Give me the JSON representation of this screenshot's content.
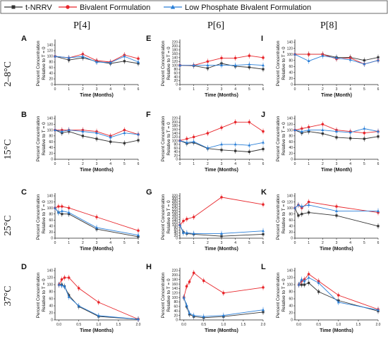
{
  "colors": {
    "nrrv": "#333333",
    "bivalent": "#e8262b",
    "lowphos": "#2a7fd8"
  },
  "legend": [
    {
      "label": "t-NRRV",
      "color": "#333333",
      "marker": "square"
    },
    {
      "label": "Bivalent Formulation",
      "color": "#e8262b",
      "marker": "circle"
    },
    {
      "label": "Low Phosphate Bivalent Formulation",
      "color": "#2a7fd8",
      "marker": "triangle"
    }
  ],
  "column_titles": [
    "P[4]",
    "P[6]",
    "P[8]"
  ],
  "row_titles": [
    "2–8°C",
    "15°C",
    "25°C",
    "37°C"
  ],
  "chart_data": [
    {
      "id": "A",
      "type": "line",
      "xlabel": "Time (Months)",
      "ylabel": [
        "Percent Concentration",
        "Relative to T = 0"
      ],
      "xlim": [
        0,
        6
      ],
      "ylim": [
        0,
        150
      ],
      "xticks": [
        0,
        1,
        2,
        3,
        4,
        5,
        6
      ],
      "yticks": [
        0,
        20,
        40,
        60,
        80,
        100,
        120,
        140
      ],
      "series": [
        {
          "name": "t-NRRV",
          "x": [
            0,
            1,
            2,
            3,
            4,
            5,
            6
          ],
          "y": [
            100,
            87,
            95,
            82,
            75,
            83,
            75
          ]
        },
        {
          "name": "Bivalent Formulation",
          "x": [
            0,
            1,
            2,
            3,
            4,
            5,
            6
          ],
          "y": [
            100,
            95,
            108,
            85,
            80,
            105,
            92
          ]
        },
        {
          "name": "Low Phosphate Bivalent Formulation",
          "x": [
            0,
            1,
            2,
            3,
            4,
            5,
            6
          ],
          "y": [
            100,
            95,
            100,
            80,
            78,
            100,
            80
          ]
        }
      ]
    },
    {
      "id": "E",
      "type": "line",
      "xlabel": "Time (Months)",
      "ylabel": [
        "Percent Concentration",
        "Relative to T = 0"
      ],
      "xlim": [
        0,
        6
      ],
      "ylim": [
        0,
        220
      ],
      "xticks": [
        0,
        1,
        2,
        3,
        4,
        5,
        6
      ],
      "yticks": [
        0,
        20,
        40,
        60,
        80,
        100,
        120,
        140,
        160,
        180,
        200,
        220
      ],
      "series": [
        {
          "name": "t-NRRV",
          "x": [
            0,
            1,
            2,
            3,
            4,
            5,
            6
          ],
          "y": [
            100,
            98,
            85,
            110,
            95,
            90,
            80
          ]
        },
        {
          "name": "Bivalent Formulation",
          "x": [
            0,
            1,
            2,
            3,
            4,
            5,
            6
          ],
          "y": [
            100,
            100,
            120,
            138,
            138,
            150,
            140
          ]
        },
        {
          "name": "Low Phosphate Bivalent Formulation",
          "x": [
            0,
            1,
            2,
            3,
            4,
            5,
            6
          ],
          "y": [
            100,
            100,
            100,
            100,
            100,
            105,
            100
          ]
        }
      ]
    },
    {
      "id": "I",
      "type": "line",
      "xlabel": "Time (Month)",
      "ylabel": [
        "Percent Concentration",
        "Relative to T = 0"
      ],
      "xlim": [
        0,
        6
      ],
      "ylim": [
        0,
        140
      ],
      "xticks": [
        0,
        1,
        2,
        3,
        4,
        5,
        6
      ],
      "yticks": [
        0,
        20,
        40,
        60,
        80,
        100,
        120,
        140
      ],
      "series": [
        {
          "name": "t-NRRV",
          "x": [
            0,
            1,
            2,
            3,
            4,
            5,
            6
          ],
          "y": [
            100,
            100,
            100,
            90,
            90,
            80,
            90
          ]
        },
        {
          "name": "Bivalent Formulation",
          "x": [
            0,
            1,
            2,
            3,
            4,
            5,
            6
          ],
          "y": [
            100,
            100,
            100,
            85,
            88,
            68,
            80
          ]
        },
        {
          "name": "Low Phosphate Bivalent Formulation",
          "x": [
            0,
            1,
            2,
            3,
            4,
            5,
            6
          ],
          "y": [
            100,
            78,
            95,
            88,
            82,
            68,
            80
          ]
        }
      ]
    },
    {
      "id": "B",
      "type": "line",
      "xlabel": "Time (Months)",
      "ylabel": [
        "Percent Concentration",
        "Relative to T = 0"
      ],
      "xlim": [
        0,
        6
      ],
      "ylim": [
        0,
        140
      ],
      "xticks": [
        0,
        1,
        2,
        3,
        4,
        5,
        6
      ],
      "yticks": [
        0,
        20,
        40,
        60,
        80,
        100,
        120,
        140
      ],
      "series": [
        {
          "name": "t-NRRV",
          "x": [
            0,
            0.5,
            1,
            2,
            3,
            4,
            5,
            6
          ],
          "y": [
            100,
            90,
            95,
            80,
            70,
            60,
            55,
            65
          ]
        },
        {
          "name": "Bivalent Formulation",
          "x": [
            0,
            0.5,
            1,
            2,
            3,
            4,
            5,
            6
          ],
          "y": [
            100,
            100,
            100,
            100,
            95,
            80,
            100,
            85
          ]
        },
        {
          "name": "Low Phosphate Bivalent Formulation",
          "x": [
            0,
            0.5,
            1,
            2,
            3,
            4,
            5,
            6
          ],
          "y": [
            100,
            95,
            100,
            95,
            90,
            75,
            90,
            85
          ]
        }
      ]
    },
    {
      "id": "F",
      "type": "line",
      "xlabel": "Time (Months)",
      "ylabel": [
        "Percent Concentration",
        "Relative to T = 0"
      ],
      "xlim": [
        0,
        6
      ],
      "ylim": [
        0,
        220
      ],
      "xticks": [
        0,
        1,
        2,
        3,
        4,
        5,
        6
      ],
      "yticks": [
        0,
        20,
        40,
        60,
        80,
        100,
        120,
        140,
        160,
        180,
        200,
        220
      ],
      "series": [
        {
          "name": "t-NRRV",
          "x": [
            0,
            0.5,
            1,
            2,
            3,
            4,
            5,
            6
          ],
          "y": [
            100,
            85,
            90,
            58,
            50,
            45,
            40,
            55
          ]
        },
        {
          "name": "Bivalent Formulation",
          "x": [
            0,
            0.5,
            1,
            2,
            3,
            4,
            5,
            6
          ],
          "y": [
            100,
            110,
            120,
            140,
            170,
            200,
            200,
            150
          ]
        },
        {
          "name": "Low Phosphate Bivalent Formulation",
          "x": [
            0,
            0.5,
            1,
            2,
            3,
            4,
            5,
            6
          ],
          "y": [
            100,
            90,
            95,
            60,
            80,
            80,
            75,
            90
          ]
        }
      ]
    },
    {
      "id": "J",
      "type": "line",
      "xlabel": "Time (Month)",
      "ylabel": [
        "Percent Concentration",
        "Relative to T = 0"
      ],
      "xlim": [
        0,
        6
      ],
      "ylim": [
        0,
        140
      ],
      "xticks": [
        0,
        1,
        2,
        3,
        4,
        5,
        6
      ],
      "yticks": [
        0,
        20,
        40,
        60,
        80,
        100,
        120,
        140
      ],
      "series": [
        {
          "name": "t-NRRV",
          "x": [
            0,
            0.5,
            1,
            2,
            3,
            4,
            5,
            6
          ],
          "y": [
            100,
            90,
            95,
            88,
            75,
            72,
            70,
            78
          ]
        },
        {
          "name": "Bivalent Formulation",
          "x": [
            0,
            0.5,
            1,
            2,
            3,
            4,
            5,
            6
          ],
          "y": [
            100,
            105,
            110,
            120,
            100,
            95,
            90,
            95
          ]
        },
        {
          "name": "Low Phosphate Bivalent Formulation",
          "x": [
            0,
            0.5,
            1,
            2,
            3,
            4,
            5,
            6
          ],
          "y": [
            100,
            95,
            100,
            100,
            95,
            92,
            105,
            95
          ]
        }
      ]
    },
    {
      "id": "C",
      "type": "line",
      "xlabel": "Time (Months)",
      "ylabel": [
        "Percent Concentration",
        "Relative to T = 0"
      ],
      "xlim": [
        0,
        6
      ],
      "ylim": [
        0,
        140
      ],
      "xticks": [
        0,
        1,
        2,
        3,
        4,
        5,
        6
      ],
      "yticks": [
        0,
        20,
        40,
        60,
        80,
        100,
        120,
        140
      ],
      "series": [
        {
          "name": "t-NRRV",
          "x": [
            0,
            0.25,
            0.5,
            1,
            3,
            6
          ],
          "y": [
            100,
            85,
            80,
            80,
            30,
            5
          ]
        },
        {
          "name": "Bivalent Formulation",
          "x": [
            0,
            0.25,
            0.5,
            1,
            3,
            6
          ],
          "y": [
            100,
            105,
            105,
            100,
            70,
            25
          ]
        },
        {
          "name": "Low Phosphate Bivalent Formulation",
          "x": [
            0,
            0.25,
            0.5,
            1,
            3,
            6
          ],
          "y": [
            100,
            85,
            90,
            85,
            35,
            10
          ]
        }
      ]
    },
    {
      "id": "G",
      "type": "line",
      "xlabel": "Time (Months)",
      "ylabel": [
        "Percent Concentration",
        "Relative to T = 0"
      ],
      "xlim": [
        0,
        6
      ],
      "ylim": [
        0,
        320
      ],
      "xticks": [
        0,
        1,
        2,
        3,
        4,
        5,
        6
      ],
      "yticks": [
        0,
        20,
        40,
        60,
        80,
        100,
        120,
        140,
        160,
        180,
        200,
        220,
        240,
        260,
        280,
        300,
        320
      ],
      "series": [
        {
          "name": "t-NRRV",
          "x": [
            0,
            0.25,
            0.5,
            1,
            3,
            6
          ],
          "y": [
            100,
            45,
            35,
            30,
            15,
            30
          ]
        },
        {
          "name": "Bivalent Formulation",
          "x": [
            0,
            0.25,
            0.5,
            1,
            3,
            6
          ],
          "y": [
            100,
            130,
            145,
            160,
            310,
            255
          ]
        },
        {
          "name": "Low Phosphate Bivalent Formulation",
          "x": [
            0,
            0.25,
            0.5,
            1,
            3,
            6
          ],
          "y": [
            100,
            40,
            40,
            35,
            35,
            55
          ]
        }
      ]
    },
    {
      "id": "K",
      "type": "line",
      "xlabel": "Time (Months)",
      "ylabel": [
        "Percent Concentration",
        "Relative to T = 0"
      ],
      "xlim": [
        0,
        6
      ],
      "ylim": [
        0,
        140
      ],
      "xticks": [
        0,
        1,
        2,
        3,
        4,
        5,
        6
      ],
      "yticks": [
        0,
        20,
        40,
        60,
        80,
        100,
        120,
        140
      ],
      "series": [
        {
          "name": "t-NRRV",
          "x": [
            0,
            0.25,
            0.5,
            1,
            3,
            6
          ],
          "y": [
            100,
            75,
            80,
            85,
            75,
            40
          ]
        },
        {
          "name": "Bivalent Formulation",
          "x": [
            0,
            0.25,
            0.5,
            1,
            3,
            6
          ],
          "y": [
            100,
            110,
            100,
            120,
            105,
            85
          ]
        },
        {
          "name": "Low Phosphate Bivalent Formulation",
          "x": [
            0,
            0.25,
            0.5,
            1,
            3,
            6
          ],
          "y": [
            100,
            110,
            105,
            110,
            90,
            90
          ]
        }
      ]
    },
    {
      "id": "D",
      "type": "line",
      "xlabel": "Time (Months)",
      "ylabel": [
        "Percent Concentration",
        "Relative to T = 0"
      ],
      "xlim": [
        -0.1,
        2.0
      ],
      "ylim": [
        0,
        140
      ],
      "xticks": [
        0.0,
        0.5,
        1.0,
        1.5,
        2.0
      ],
      "yticks": [
        0,
        20,
        40,
        60,
        80,
        100,
        120,
        140
      ],
      "series": [
        {
          "name": "t-NRRV",
          "x": [
            0,
            0.07,
            0.14,
            0.25,
            0.5,
            1.0,
            2.0
          ],
          "y": [
            100,
            100,
            95,
            70,
            38,
            10,
            2
          ]
        },
        {
          "name": "Bivalent Formulation",
          "x": [
            0,
            0.07,
            0.14,
            0.25,
            0.5,
            1.0,
            2.0
          ],
          "y": [
            100,
            115,
            120,
            120,
            90,
            50,
            2
          ]
        },
        {
          "name": "Low Phosphate Bivalent Formulation",
          "x": [
            0,
            0.07,
            0.14,
            0.25,
            0.5,
            1.0,
            2.0
          ],
          "y": [
            100,
            98,
            95,
            65,
            40,
            12,
            2
          ]
        }
      ]
    },
    {
      "id": "H",
      "type": "line",
      "xlabel": "Time (Months)",
      "ylabel": [
        "Percent Concentration",
        "Relative to T = 0"
      ],
      "xlim": [
        -0.1,
        2.0
      ],
      "ylim": [
        0,
        220
      ],
      "xticks": [
        0.0,
        0.5,
        1.0,
        1.5,
        2.0
      ],
      "yticks": [
        0,
        20,
        40,
        60,
        80,
        100,
        120,
        140,
        160,
        180,
        200,
        220
      ],
      "series": [
        {
          "name": "t-NRRV",
          "x": [
            0,
            0.07,
            0.14,
            0.25,
            0.5,
            1.0,
            2.0
          ],
          "y": [
            100,
            60,
            25,
            15,
            10,
            15,
            35
          ]
        },
        {
          "name": "Bivalent Formulation",
          "x": [
            0,
            0.07,
            0.14,
            0.25,
            0.5,
            1.0,
            2.0
          ],
          "y": [
            100,
            150,
            170,
            210,
            175,
            120,
            145
          ]
        },
        {
          "name": "Low Phosphate Bivalent Formulation",
          "x": [
            0,
            0.07,
            0.14,
            0.25,
            0.5,
            1.0,
            2.0
          ],
          "y": [
            100,
            65,
            30,
            20,
            15,
            20,
            45
          ]
        }
      ]
    },
    {
      "id": "L",
      "type": "line",
      "xlabel": "Time (Months)",
      "ylabel": [
        "Percent Concentration",
        "Relative to T = 0"
      ],
      "xlim": [
        -0.1,
        2.0
      ],
      "ylim": [
        0,
        140
      ],
      "xticks": [
        0.0,
        0.5,
        1.0,
        1.5,
        2.0
      ],
      "yticks": [
        0,
        20,
        40,
        60,
        80,
        100,
        120,
        140
      ],
      "series": [
        {
          "name": "t-NRRV",
          "x": [
            0,
            0.07,
            0.14,
            0.25,
            0.5,
            1.0,
            2.0
          ],
          "y": [
            100,
            100,
            100,
            105,
            80,
            55,
            25
          ]
        },
        {
          "name": "Bivalent Formulation",
          "x": [
            0,
            0.07,
            0.14,
            0.25,
            0.5,
            1.0,
            2.0
          ],
          "y": [
            100,
            110,
            115,
            130,
            110,
            70,
            30
          ]
        },
        {
          "name": "Low Phosphate Bivalent Formulation",
          "x": [
            0,
            0.07,
            0.14,
            0.25,
            0.5,
            1.0,
            2.0
          ],
          "y": [
            100,
            115,
            110,
            120,
            105,
            50,
            28
          ]
        }
      ]
    }
  ]
}
